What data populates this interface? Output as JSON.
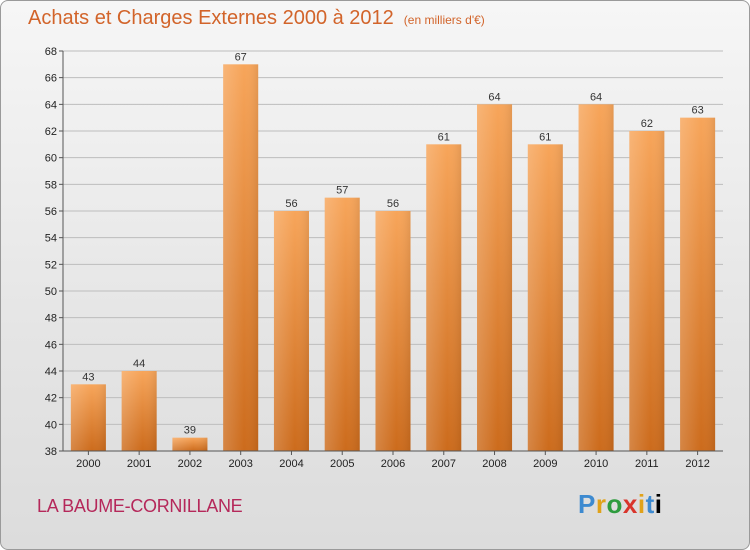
{
  "header": {
    "title": "Achats et Charges Externes 2000 à 2012",
    "unit": "(en milliers d'€)"
  },
  "footer": {
    "place": "LA BAUME-CORNILLANE",
    "brand_letters": [
      "P",
      "r",
      "o",
      "x",
      "i",
      "t",
      "i"
    ]
  },
  "chart_data": {
    "type": "bar",
    "title": "Achats et Charges Externes 2000 à 2012",
    "subtitle": "(en milliers d'€)",
    "categories": [
      "2000",
      "2001",
      "2002",
      "2003",
      "2004",
      "2005",
      "2006",
      "2007",
      "2008",
      "2009",
      "2010",
      "2011",
      "2012"
    ],
    "values": [
      43,
      44,
      39,
      67,
      56,
      57,
      56,
      61,
      64,
      61,
      64,
      62,
      63
    ],
    "ylim": [
      38,
      68
    ],
    "yticks": [
      38,
      40,
      42,
      44,
      46,
      48,
      50,
      52,
      54,
      56,
      58,
      60,
      62,
      64,
      66,
      68
    ],
    "grid": true,
    "colors": {
      "bar_top": "#f7a55a",
      "bar_bottom": "#cc6b1c",
      "grid": "#bdbdbd"
    }
  }
}
